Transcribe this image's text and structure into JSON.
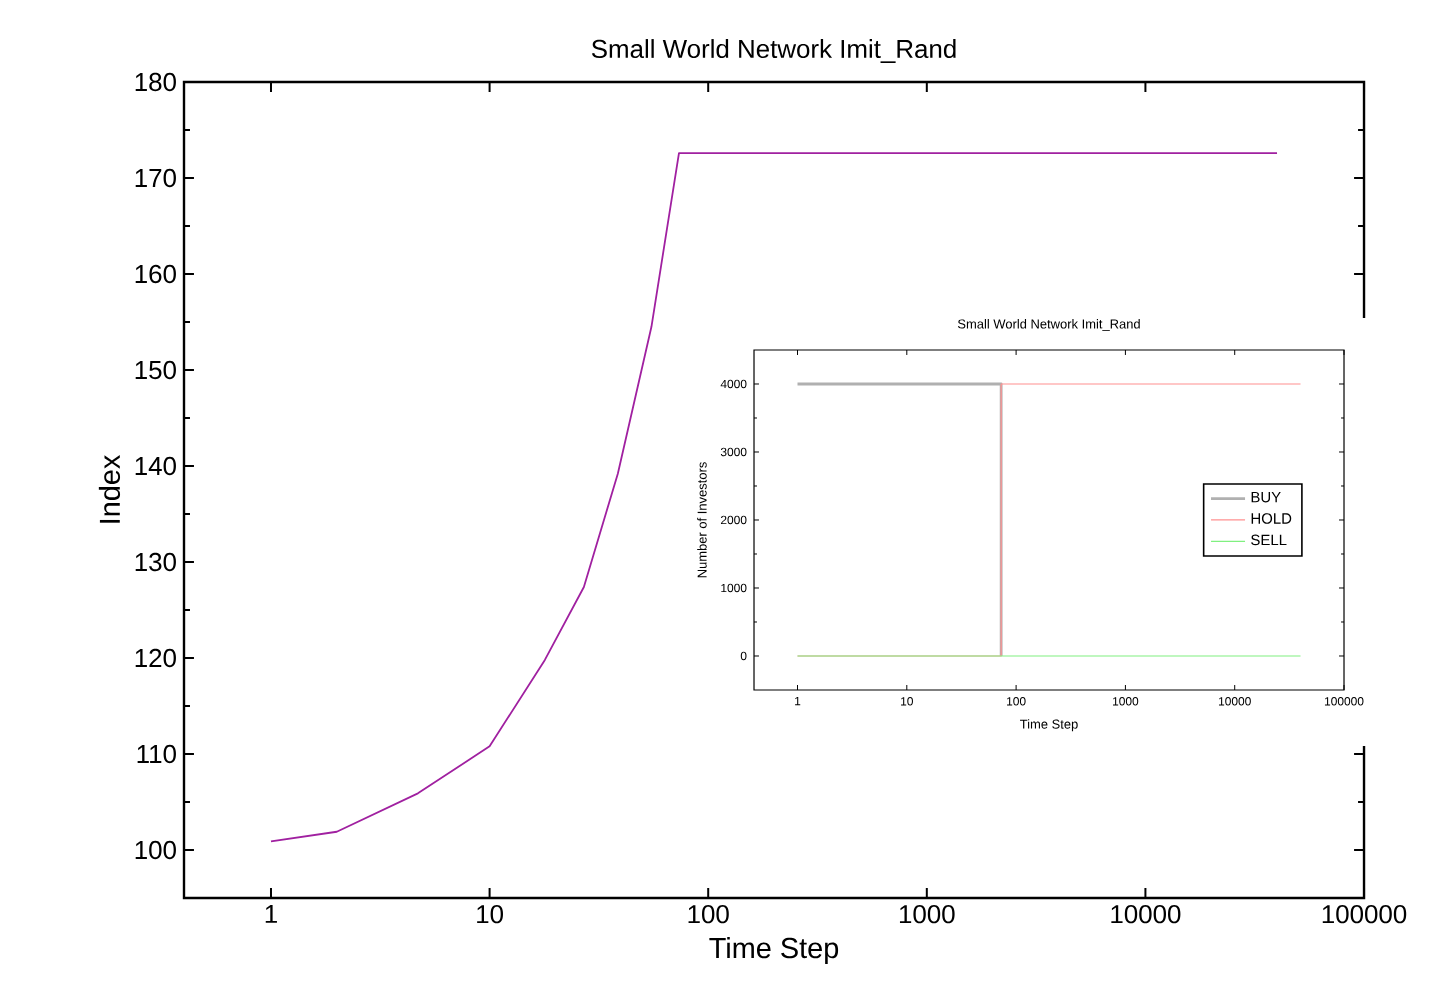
{
  "chart_data": [
    {
      "type": "line",
      "title": "Small World Network Imit_Rand",
      "xlabel": "Time Step",
      "ylabel": "Index",
      "log": "x",
      "xlim": [
        0.4,
        100000
      ],
      "ylim": [
        95,
        180
      ],
      "xticks": [
        1,
        10,
        100,
        1000,
        10000,
        100000
      ],
      "yticks": [
        100,
        110,
        120,
        130,
        140,
        150,
        160,
        170,
        180
      ],
      "series": [
        {
          "color": "#a020a0",
          "x": [
            1,
            2,
            4.7,
            10,
            17.9,
            27,
            38.6,
            55,
            73.5,
            40000
          ],
          "values": [
            100.9,
            101.9,
            105.9,
            110.8,
            119.8,
            127.4,
            139.2,
            154.5,
            172.6,
            172.6
          ]
        }
      ]
    },
    {
      "type": "line",
      "title": "Small World Network Imit_Rand",
      "xlabel": "Time Step",
      "ylabel": "Number of Investors",
      "log": "x",
      "legend": "right",
      "xlim": [
        0.4,
        100000
      ],
      "ylim": [
        -500,
        4500
      ],
      "xticks": [
        1,
        10,
        100,
        1000,
        10000,
        100000
      ],
      "yticks": [
        0,
        1000,
        2000,
        3000,
        4000
      ],
      "series": [
        {
          "name": "BUY",
          "color": "#b0b0b0",
          "x": [
            1,
            73,
            73
          ],
          "values": [
            4000,
            4000,
            0
          ]
        },
        {
          "name": "HOLD",
          "color": "#ff9090",
          "x": [
            1,
            73,
            73,
            40000
          ],
          "values": [
            0,
            0,
            4000,
            4000
          ]
        },
        {
          "name": "SELL",
          "color": "#80f080",
          "x": [
            1,
            40000
          ],
          "values": [
            0,
            0
          ]
        }
      ]
    }
  ]
}
